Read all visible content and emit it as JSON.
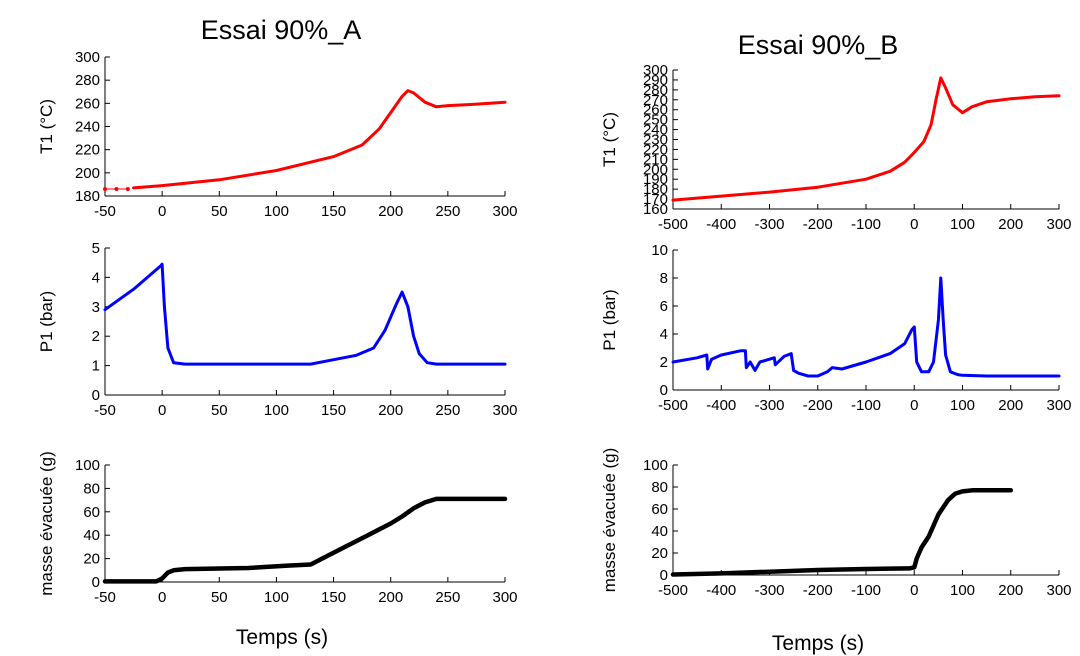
{
  "figure": {
    "column_titles": [
      "Essai 90%_A",
      "Essai 90%_B"
    ],
    "bottom_xlabel": "Temps (s)"
  },
  "chart_data": [
    {
      "id": "A-T1",
      "type": "line",
      "title": "Essai 90%_A",
      "xlabel": "",
      "ylabel": "T1 (°C)",
      "xlim": [
        -50,
        300
      ],
      "ylim": [
        180,
        300
      ],
      "xticks": [
        -50,
        0,
        50,
        100,
        150,
        200,
        250,
        300
      ],
      "yticks": [
        180,
        200,
        220,
        240,
        260,
        280,
        300
      ],
      "color": "#ff0000",
      "points_x": [
        -50,
        -40,
        -30
      ],
      "points_y": [
        186,
        186,
        186
      ],
      "series": [
        {
          "x": [
            -25,
            0,
            50,
            100,
            150,
            175,
            190,
            200,
            210,
            215,
            220,
            230,
            240,
            250,
            270,
            300
          ],
          "y": [
            187,
            189,
            194,
            202,
            214,
            224,
            238,
            252,
            266,
            271,
            269,
            261,
            257,
            258,
            259,
            261
          ]
        }
      ]
    },
    {
      "id": "A-P1",
      "type": "line",
      "title": "",
      "xlabel": "",
      "ylabel": "P1 (bar)",
      "xlim": [
        -50,
        300
      ],
      "ylim": [
        0,
        5
      ],
      "xticks": [
        -50,
        0,
        50,
        100,
        150,
        200,
        250,
        300
      ],
      "yticks": [
        0,
        1,
        2,
        3,
        4,
        5
      ],
      "color": "#0000ff",
      "series": [
        {
          "x": [
            -50,
            -25,
            -10,
            -1,
            0,
            2,
            5,
            10,
            20,
            50,
            100,
            130,
            150,
            170,
            185,
            195,
            205,
            210,
            215,
            220,
            225,
            232,
            240,
            260,
            300
          ],
          "y": [
            2.9,
            3.6,
            4.1,
            4.4,
            4.45,
            3.0,
            1.6,
            1.1,
            1.05,
            1.05,
            1.05,
            1.05,
            1.2,
            1.35,
            1.6,
            2.2,
            3.1,
            3.5,
            3.0,
            2.0,
            1.4,
            1.1,
            1.05,
            1.05,
            1.05
          ]
        }
      ]
    },
    {
      "id": "A-m",
      "type": "line",
      "title": "",
      "xlabel": "Temps (s)",
      "ylabel": "masse évacuée (g)",
      "xlim": [
        -50,
        300
      ],
      "ylim": [
        0,
        100
      ],
      "xticks": [
        -50,
        0,
        50,
        100,
        150,
        200,
        250,
        300
      ],
      "yticks": [
        0,
        20,
        40,
        60,
        80,
        100
      ],
      "color": "#000000",
      "series": [
        {
          "x": [
            -50,
            -5,
            0,
            5,
            10,
            20,
            75,
            110,
            130,
            140,
            160,
            180,
            200,
            210,
            220,
            230,
            240,
            300
          ],
          "y": [
            0.5,
            0.5,
            3,
            8,
            10,
            11,
            12,
            14,
            15,
            20,
            30,
            40,
            50,
            56,
            63,
            68,
            71,
            71
          ]
        }
      ]
    },
    {
      "id": "B-T1",
      "type": "line",
      "title": "Essai 90%_B",
      "xlabel": "",
      "ylabel": "T1 (°C)",
      "xlim": [
        -500,
        300
      ],
      "ylim": [
        160,
        300
      ],
      "xticks": [
        -500,
        -400,
        -300,
        -200,
        -100,
        0,
        100,
        200,
        300
      ],
      "yticks": [
        160,
        170,
        180,
        190,
        200,
        210,
        220,
        230,
        240,
        250,
        260,
        270,
        280,
        290,
        300
      ],
      "color": "#ff0000",
      "series": [
        {
          "x": [
            -500,
            -400,
            -300,
            -200,
            -100,
            -50,
            -20,
            0,
            20,
            35,
            45,
            55,
            65,
            80,
            100,
            120,
            150,
            200,
            250,
            300
          ],
          "y": [
            169,
            173,
            177,
            182,
            190,
            198,
            207,
            217,
            228,
            245,
            270,
            292,
            282,
            265,
            257,
            263,
            268,
            271,
            273,
            274
          ]
        }
      ]
    },
    {
      "id": "B-P1",
      "type": "line",
      "title": "",
      "xlabel": "",
      "ylabel": "P1 (bar)",
      "xlim": [
        -500,
        300
      ],
      "ylim": [
        0,
        10
      ],
      "xticks": [
        -500,
        -400,
        -300,
        -200,
        -100,
        0,
        100,
        200,
        300
      ],
      "yticks": [
        0,
        2,
        4,
        6,
        8,
        10
      ],
      "color": "#0000ff",
      "series": [
        {
          "x": [
            -500,
            -450,
            -430,
            -428,
            -420,
            -400,
            -360,
            -350,
            -348,
            -340,
            -330,
            -320,
            -300,
            -290,
            -288,
            -270,
            -255,
            -250,
            -240,
            -220,
            -200,
            -180,
            -170,
            -150,
            -100,
            -50,
            -20,
            -5,
            0,
            5,
            15,
            30,
            40,
            50,
            55,
            60,
            65,
            75,
            90,
            100,
            150,
            200,
            300
          ],
          "y": [
            2.0,
            2.3,
            2.5,
            1.5,
            2.2,
            2.5,
            2.8,
            2.8,
            1.6,
            2.0,
            1.4,
            2.0,
            2.2,
            2.3,
            1.8,
            2.4,
            2.6,
            1.4,
            1.2,
            1.0,
            1.0,
            1.3,
            1.6,
            1.5,
            2.0,
            2.6,
            3.3,
            4.3,
            4.5,
            2.0,
            1.3,
            1.3,
            2.0,
            5.0,
            8.0,
            5.0,
            2.5,
            1.3,
            1.1,
            1.05,
            1.0,
            1.0,
            1.0
          ]
        }
      ]
    },
    {
      "id": "B-m",
      "type": "line",
      "title": "",
      "xlabel": "Temps (s)",
      "ylabel": "masse évacuée (g)",
      "xlim": [
        -500,
        300
      ],
      "ylim": [
        0,
        100
      ],
      "xticks": [
        -500,
        -400,
        -300,
        -200,
        -100,
        0,
        100,
        200,
        300
      ],
      "yticks": [
        0,
        20,
        40,
        60,
        80,
        100
      ],
      "color": "#000000",
      "series": [
        {
          "x": [
            -500,
            -400,
            -300,
            -200,
            -100,
            -10,
            0,
            5,
            15,
            30,
            50,
            70,
            85,
            100,
            120,
            200
          ],
          "y": [
            0.5,
            1.5,
            3,
            4.5,
            5.5,
            6,
            7,
            15,
            25,
            35,
            55,
            68,
            74,
            76,
            77,
            77
          ]
        }
      ]
    }
  ]
}
